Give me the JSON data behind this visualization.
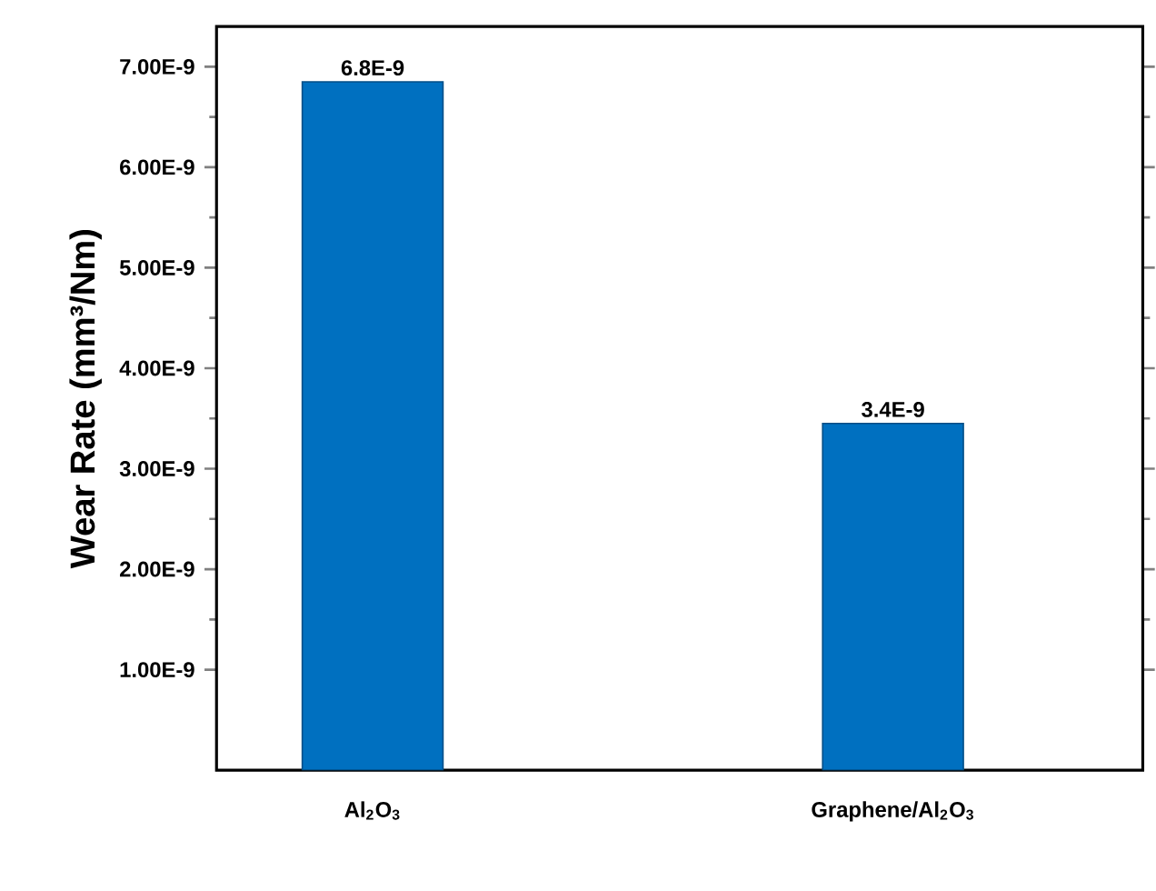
{
  "chart_data": {
    "type": "bar",
    "ylabel": "Wear Rate (mm³/Nm)",
    "categories": [
      "Al$_{2}$O$_{3}$",
      "Graphene/Al$_{2}$O$_{3}$"
    ],
    "values": [
      6.85e-09,
      3.45e-09
    ],
    "value_labels": [
      "6.8E-9",
      "3.4E-9"
    ],
    "color": "#0070c0",
    "ylim": [
      0,
      7.4e-09
    ],
    "yticks": [
      {
        "value": 1e-09,
        "label": "1.00E-9"
      },
      {
        "value": 2e-09,
        "label": "2.00E-9"
      },
      {
        "value": 3e-09,
        "label": "3.00E-9"
      },
      {
        "value": 4e-09,
        "label": "4.00E-9"
      },
      {
        "value": 5e-09,
        "label": "5.00E-9"
      },
      {
        "value": 6e-09,
        "label": "6.00E-9"
      },
      {
        "value": 7e-09,
        "label": "7.00E-9"
      }
    ],
    "grid": false
  }
}
